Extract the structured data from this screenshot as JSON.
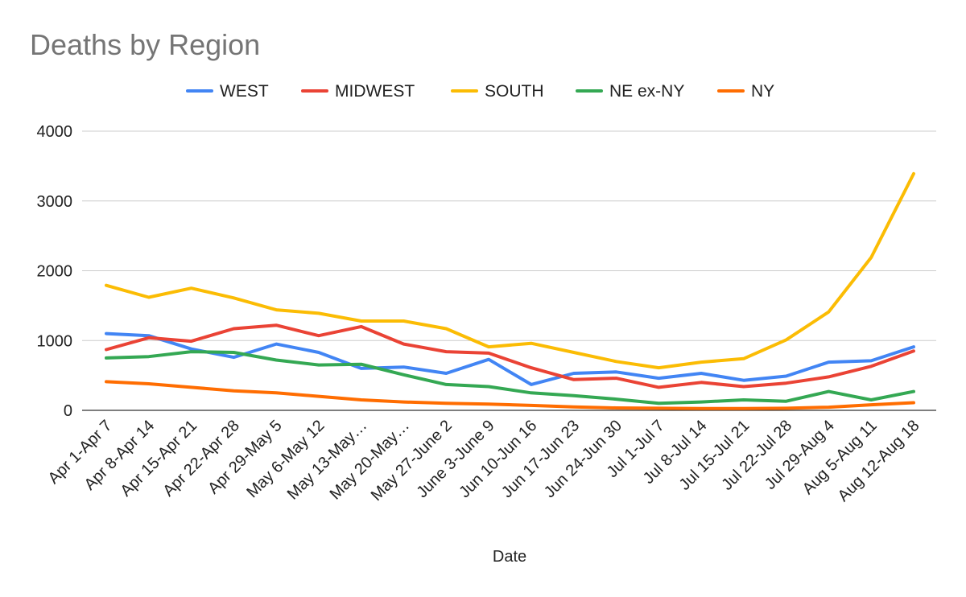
{
  "chart_data": {
    "type": "line",
    "title": "Deaths by Region",
    "xlabel": "Date",
    "ylabel": "",
    "ylim": [
      0,
      4000
    ],
    "yticks": [
      0,
      1000,
      2000,
      3000,
      4000
    ],
    "grid": true,
    "legend_position": "top",
    "categories": [
      "Apr 1-Apr 7",
      "Apr 8-Apr 14",
      "Apr 15-Apr 21",
      "Apr 22-Apr 28",
      "Apr 29-May 5",
      "May 6-May 12",
      "May 13-May…",
      "May 20-May…",
      "May 27-June 2",
      "June 3-June 9",
      "Jun 10-Jun 16",
      "Jun 17-Jun 23",
      "Jun 24-Jun 30",
      "Jul 1-Jul 7",
      "Jul 8-Jul 14",
      "Jul 15-Jul 21",
      "Jul 22-Jul 28",
      "Jul 29-Aug 4",
      "Aug 5-Aug 11",
      "Aug 12-Aug 18"
    ],
    "series": [
      {
        "name": "WEST",
        "color": "#4285f4",
        "values": [
          1100,
          1070,
          880,
          760,
          950,
          830,
          600,
          620,
          530,
          730,
          370,
          530,
          550,
          460,
          530,
          430,
          490,
          690,
          710,
          910
        ]
      },
      {
        "name": "MIDWEST",
        "color": "#ea4335",
        "values": [
          870,
          1040,
          990,
          1170,
          1220,
          1070,
          1200,
          950,
          840,
          820,
          610,
          440,
          460,
          330,
          400,
          340,
          390,
          480,
          630,
          850
        ]
      },
      {
        "name": "SOUTH",
        "color": "#fbbc04",
        "values": [
          1790,
          1620,
          1750,
          1610,
          1440,
          1390,
          1280,
          1280,
          1170,
          910,
          960,
          830,
          700,
          610,
          690,
          740,
          1010,
          1410,
          2190,
          3390
        ]
      },
      {
        "name": "NE ex-NY",
        "color": "#34a853",
        "values": [
          750,
          770,
          840,
          830,
          720,
          650,
          660,
          510,
          370,
          340,
          250,
          210,
          160,
          100,
          120,
          150,
          130,
          270,
          150,
          270
        ]
      },
      {
        "name": "NY",
        "color": "#ff6d01",
        "values": [
          410,
          380,
          330,
          280,
          250,
          200,
          150,
          120,
          100,
          90,
          70,
          50,
          35,
          30,
          25,
          25,
          30,
          45,
          80,
          110
        ]
      }
    ]
  }
}
